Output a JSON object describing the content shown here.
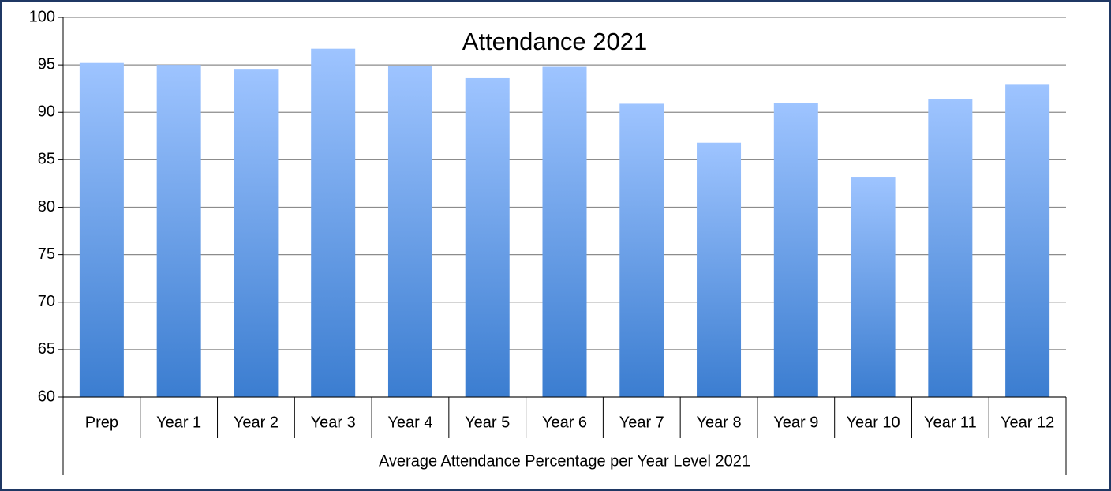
{
  "chart_data": {
    "type": "bar",
    "title": "Attendance 2021",
    "x_label": "Average Attendance Percentage per Year Level 2021",
    "categories": [
      "Prep",
      "Year 1",
      "Year 2",
      "Year 3",
      "Year 4",
      "Year 5",
      "Year 6",
      "Year 7",
      "Year 8",
      "Year 9",
      "Year 10",
      "Year 11",
      "Year 12"
    ],
    "values": [
      95.2,
      95.0,
      94.5,
      96.7,
      94.9,
      93.6,
      94.8,
      90.9,
      86.8,
      91.0,
      83.2,
      91.4,
      92.9
    ],
    "colors": [
      "#9ec4ff",
      "#3b7dd0"
    ],
    "ylim": [
      60,
      100
    ],
    "yticks": [
      60,
      65,
      70,
      75,
      80,
      85,
      90,
      95,
      100
    ],
    "grid": true
  }
}
